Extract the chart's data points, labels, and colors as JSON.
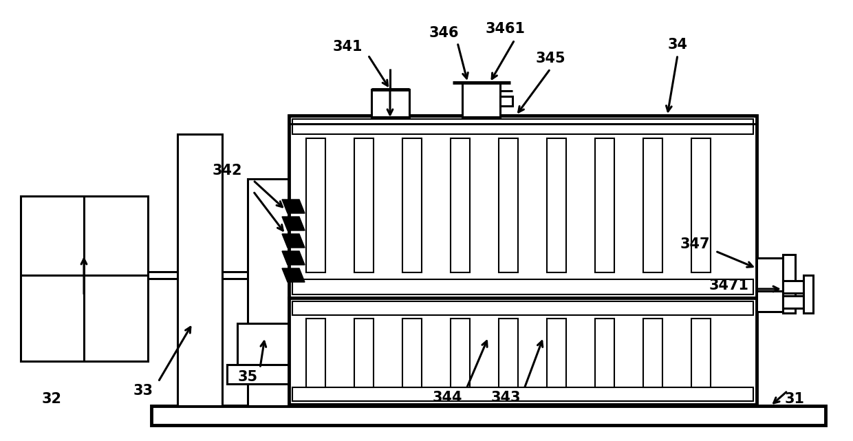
{
  "bg_color": "#ffffff",
  "lw": 2.2,
  "lwt": 3.5,
  "lw2": 1.5,
  "fs": 15,
  "fw": "bold"
}
